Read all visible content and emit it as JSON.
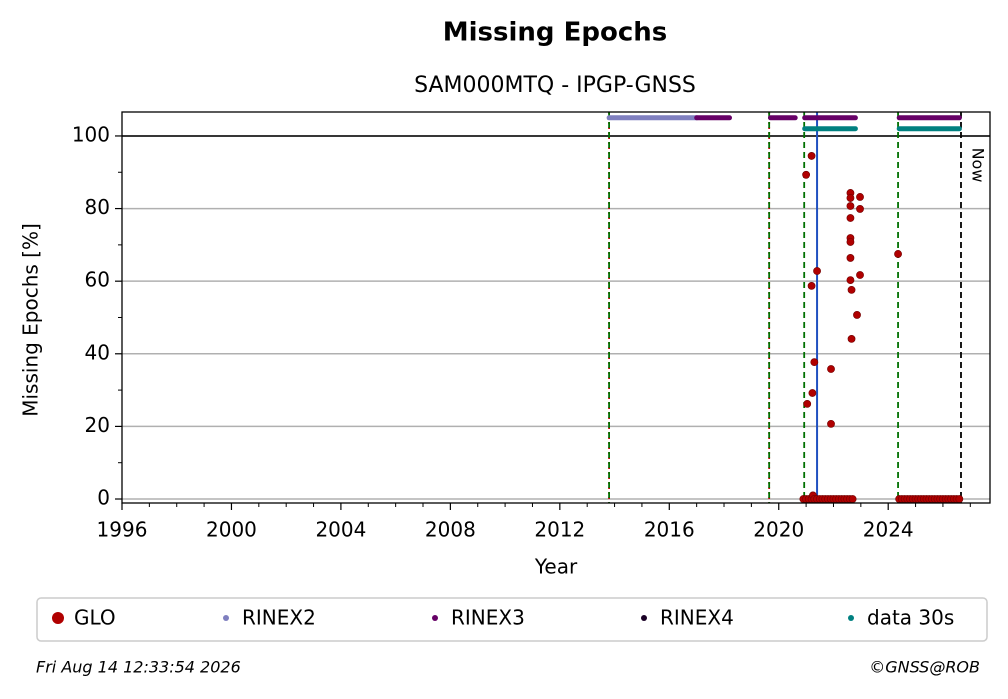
{
  "chart_data": {
    "type": "scatter",
    "title": "Missing Epochs",
    "subtitle": "SAM000MTQ - IPGP-GNSS",
    "xlabel": "Year",
    "ylabel": "Missing Epochs [%]",
    "xlim": [
      1996,
      2027.72
    ],
    "ylim": [
      -1.1,
      106.6
    ],
    "xticks": [
      1996,
      2000,
      2004,
      2008,
      2012,
      2016,
      2020,
      2024
    ],
    "xminor": [
      1997,
      1998,
      1999,
      2001,
      2002,
      2003,
      2005,
      2006,
      2007,
      2009,
      2010,
      2011,
      2013,
      2014,
      2015,
      2017,
      2018,
      2019,
      2021,
      2022,
      2023,
      2025,
      2026,
      2027
    ],
    "yticks": [
      0,
      20,
      40,
      60,
      80,
      100
    ],
    "yminor": [
      10,
      30,
      50,
      70,
      90
    ],
    "grid": true,
    "hline": {
      "y": 100,
      "color": "#000000"
    },
    "vlines": [
      {
        "x": 2013.8,
        "color": "#c00000",
        "style": "dotted"
      },
      {
        "x": 2013.8,
        "color": "#007000",
        "style": "dashed"
      },
      {
        "x": 2019.65,
        "color": "#c00000",
        "style": "dotted"
      },
      {
        "x": 2019.65,
        "color": "#007000",
        "style": "dashed"
      },
      {
        "x": 2020.93,
        "color": "#007000",
        "style": "dashed"
      },
      {
        "x": 2021.4,
        "color": "#2050c0",
        "style": "solid"
      },
      {
        "x": 2024.36,
        "color": "#007000",
        "style": "dashed"
      },
      {
        "x": 2026.66,
        "color": "#000000",
        "style": "dashed"
      }
    ],
    "annotations": [
      {
        "text": "Now",
        "x": 2026.66
      }
    ],
    "series": [
      {
        "name": "GLO",
        "color": "#b00000",
        "style": "points",
        "x": [
          2020.9,
          2021.0,
          2021.0,
          2021.04,
          2021.1,
          2021.2,
          2021.2,
          2021.2,
          2021.23,
          2021.25,
          2021.3,
          2021.3,
          2021.4,
          2021.4,
          2021.5,
          2021.6,
          2021.7,
          2021.8,
          2021.9,
          2021.91,
          2021.91,
          2022.0,
          2022.1,
          2022.2,
          2022.3,
          2022.4,
          2022.5,
          2022.6,
          2022.62,
          2022.62,
          2022.62,
          2022.62,
          2022.62,
          2022.62,
          2022.62,
          2022.62,
          2022.66,
          2022.66,
          2022.7,
          2022.86,
          2022.97,
          2022.97,
          2022.97,
          2024.36,
          2024.4,
          2024.5,
          2024.6,
          2024.7,
          2024.8,
          2024.9,
          2025.0,
          2025.1,
          2025.2,
          2025.3,
          2025.4,
          2025.5,
          2025.6,
          2025.7,
          2025.8,
          2025.9,
          2026.0,
          2026.1,
          2026.2,
          2026.3,
          2026.4,
          2026.5,
          2026.6
        ],
        "values": [
          0,
          89.3,
          0,
          26.2,
          0,
          94.5,
          58.7,
          0,
          29.2,
          1,
          37.7,
          0,
          62.8,
          0,
          0,
          0,
          0,
          0,
          0,
          35.8,
          20.7,
          0,
          0,
          0,
          0,
          0,
          0,
          0,
          84.3,
          82.9,
          80.7,
          77.4,
          71.9,
          70.8,
          66.4,
          60.3,
          57.6,
          44.1,
          0,
          50.7,
          83.2,
          79.9,
          61.7,
          67.5,
          0,
          0,
          0,
          0,
          0,
          0,
          0,
          0,
          0,
          0,
          0,
          0,
          0,
          0,
          0,
          0,
          0,
          0,
          0,
          0,
          0,
          0,
          0
        ]
      },
      {
        "name": "RINEX2",
        "color": "#7f7fbf",
        "style": "segments",
        "x": [
          2013.8,
          2017.0
        ],
        "values": [
          105,
          105
        ]
      },
      {
        "name": "RINEX3",
        "color": "#660066",
        "style": "segments",
        "x": [
          2017.0,
          2018.2,
          2019.0,
          2019.7,
          2020.6,
          2020.8,
          2020.95,
          2022.8,
          2023.5,
          2024.4,
          2026.6
        ],
        "values": [
          105,
          105,
          null,
          105,
          105,
          null,
          105,
          105,
          null,
          105,
          105
        ]
      },
      {
        "name": "RINEX4",
        "color": "#1a0026",
        "style": "segments",
        "x": [],
        "values": []
      },
      {
        "name": "data 30s",
        "color": "#008080",
        "style": "segments",
        "x": [
          2020.95,
          2022.8,
          2023.5,
          2024.4,
          2026.6
        ],
        "values": [
          102,
          102,
          null,
          102,
          102
        ]
      }
    ],
    "footer_left": "Fri Aug 14 12:33:54 2026",
    "footer_right": "©GNSS@ROB"
  }
}
